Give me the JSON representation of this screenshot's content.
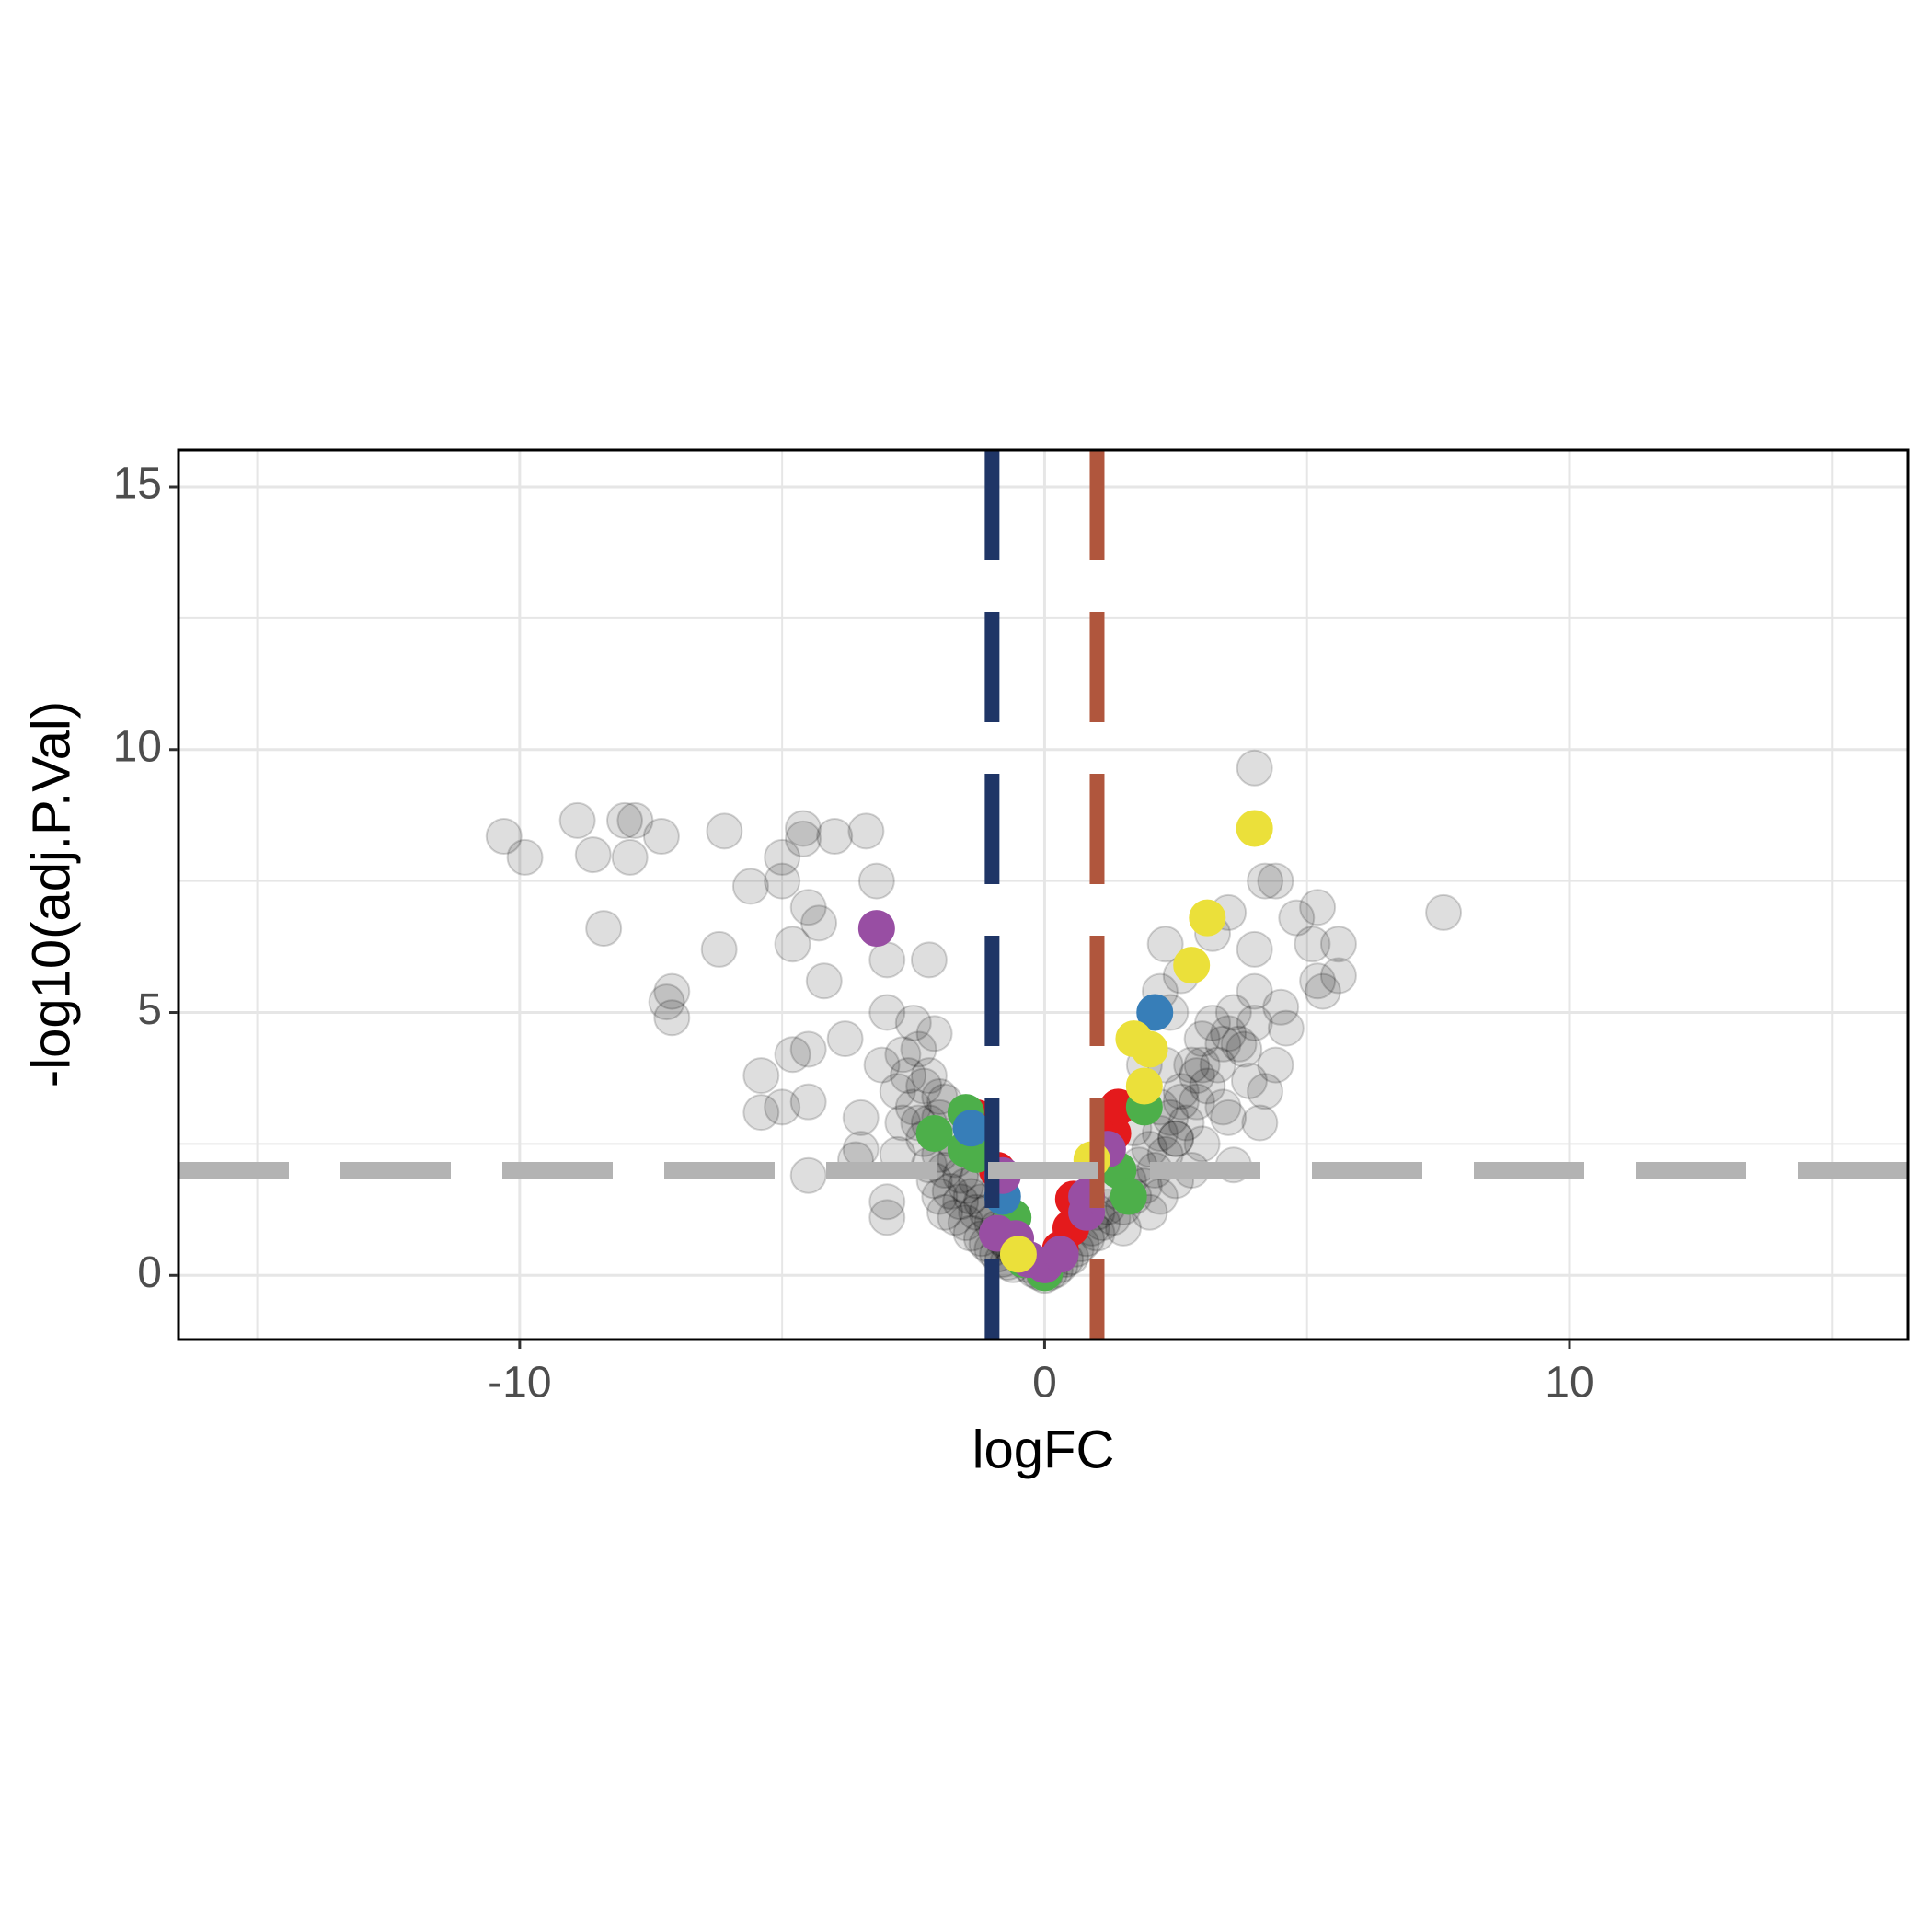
{
  "chart_data": {
    "type": "scatter",
    "x_label": "logFC",
    "y_label": "-log10(adj.P.Val)",
    "xlim": [
      -16.5,
      16.45
    ],
    "ylim": [
      -1.22,
      15.7
    ],
    "xticks": [
      -10,
      0,
      10
    ],
    "yticks": [
      0,
      5,
      10,
      15
    ],
    "xminor": [
      -15,
      -5,
      5,
      15
    ],
    "yminor": [
      2.5,
      7.5,
      12.5
    ],
    "grid": true,
    "grid_color": "#e6e6e6",
    "vlines": [
      {
        "value": -1,
        "color": "#1f3566"
      },
      {
        "value": 1,
        "color": "#b0563d"
      }
    ],
    "hlines": [
      {
        "value": 2,
        "color": "#b3b3b3"
      }
    ],
    "series": [
      {
        "color": "#000000",
        "alpha": 0.13,
        "x": [
          -10.3,
          -9.9,
          -8.9,
          -8.6,
          -8.0,
          -7.9,
          -7.8,
          -8.4,
          -7.3,
          -6.1,
          -6.2,
          -7.2,
          -7.1,
          -7.1,
          -5.6,
          -5.0,
          -5.0,
          -4.6,
          -4.6,
          -4.8,
          -4.5,
          -4.3,
          -4.0,
          -3.4,
          -3.2,
          -3.0,
          -2.2,
          -3.8,
          -4.2,
          -4.5,
          -4.8,
          -5.4,
          -5.4,
          -5.0,
          -4.5,
          -4.5,
          -3.0,
          -3.0,
          -3.5,
          -3.5,
          -3.6,
          -3.0,
          -2.7,
          -2.5,
          -2.2,
          -2.0,
          -2.8,
          -3.1,
          -2.4
        ],
        "y": [
          8.35,
          7.95,
          8.65,
          8.0,
          8.65,
          7.95,
          8.65,
          6.6,
          8.35,
          8.45,
          6.2,
          5.2,
          5.4,
          4.9,
          7.4,
          7.95,
          7.5,
          8.5,
          8.3,
          6.3,
          7.0,
          6.7,
          8.35,
          8.45,
          7.5,
          6.0,
          6.0,
          4.5,
          5.6,
          4.3,
          4.2,
          3.8,
          3.1,
          3.2,
          3.3,
          1.9,
          1.4,
          1.1,
          3.0,
          2.4,
          2.2,
          5.0,
          4.2,
          4.8,
          3.8,
          3.4,
          3.5,
          4.0,
          2.9
        ]
      },
      {
        "color": "#000000",
        "alpha": 0.13,
        "x": [
          4.0,
          4.2,
          4.4,
          3.5,
          3.2,
          2.3,
          2.2,
          2.6,
          4.0,
          4.8,
          5.2,
          5.1,
          5.6,
          5.2,
          5.3,
          5.6,
          7.6,
          4.5,
          4.0,
          4.6,
          3.4,
          3.7,
          3.0,
          4.2,
          4.1,
          2.9,
          2.6,
          2.2,
          3.6,
          2.5,
          1.9,
          4.4,
          2.4
        ],
        "y": [
          9.65,
          7.5,
          7.5,
          6.9,
          6.5,
          6.3,
          5.4,
          5.7,
          6.2,
          6.8,
          7.0,
          6.3,
          6.3,
          5.6,
          5.4,
          5.7,
          6.9,
          5.1,
          5.4,
          4.7,
          4.4,
          4.4,
          4.0,
          3.5,
          2.9,
          3.8,
          3.3,
          3.2,
          2.1,
          2.6,
          4.0,
          4.0,
          5.0
        ]
      },
      {
        "color": "#000000",
        "alpha": 0.13,
        "x": [
          -2.3,
          -2.2,
          -2.1,
          -2.0,
          -2.0,
          -1.9,
          -1.9,
          -1.8,
          -1.8,
          -1.7,
          -1.7,
          -1.6,
          -1.6,
          -1.5,
          -1.5,
          -1.4,
          -1.4,
          -1.3,
          -1.3,
          -1.2,
          -1.2,
          -1.1,
          -1.1,
          -1.0,
          -1.0,
          -0.9,
          -0.9,
          -0.8,
          -0.8,
          -0.7,
          -0.7,
          -0.6,
          -0.6,
          -0.5,
          -0.4,
          -0.3,
          -0.2,
          -0.1,
          0.0,
          -2.5,
          -2.6,
          -2.4,
          -2.3,
          -2.1,
          -2.7,
          -2.8,
          -2.0,
          -1.9,
          -2.2
        ],
        "y": [
          2.6,
          2.1,
          1.8,
          2.3,
          1.5,
          2.0,
          1.2,
          2.6,
          1.6,
          2.2,
          1.1,
          1.9,
          1.4,
          1.7,
          1.0,
          1.5,
          0.8,
          1.8,
          1.2,
          1.4,
          0.7,
          1.2,
          0.6,
          1.0,
          0.5,
          0.9,
          0.4,
          0.7,
          0.3,
          0.6,
          0.25,
          0.5,
          0.2,
          0.4,
          0.3,
          0.2,
          0.1,
          0.05,
          0.0,
          3.2,
          3.8,
          4.3,
          3.6,
          4.6,
          2.9,
          2.3,
          3.0,
          3.3,
          2.9
        ]
      },
      {
        "color": "#000000",
        "alpha": 0.13,
        "x": [
          0.1,
          0.2,
          0.3,
          0.4,
          0.5,
          0.6,
          0.7,
          0.8,
          0.9,
          1.0,
          1.0,
          1.1,
          1.2,
          1.3,
          1.4,
          1.5,
          1.6,
          1.7,
          1.8,
          1.9,
          2.0,
          2.1,
          2.2,
          2.3,
          2.4,
          2.5,
          2.6,
          2.7,
          2.8,
          2.9,
          3.0,
          3.1,
          3.2,
          3.3,
          3.4,
          3.5,
          3.6,
          3.8,
          3.9,
          4.0,
          2.0,
          1.5,
          2.5,
          3.0,
          3.5,
          2.2,
          2.8,
          1.7,
          2.3
        ],
        "y": [
          0.05,
          0.1,
          0.2,
          0.3,
          0.35,
          0.5,
          0.6,
          0.7,
          0.9,
          0.8,
          1.2,
          1.0,
          1.3,
          1.1,
          1.6,
          1.3,
          1.8,
          1.5,
          2.1,
          1.7,
          2.4,
          2.0,
          2.7,
          2.3,
          3.0,
          2.6,
          3.5,
          2.9,
          4.0,
          3.3,
          4.5,
          3.6,
          4.8,
          4.0,
          3.2,
          4.6,
          5.0,
          4.3,
          3.7,
          4.8,
          1.2,
          0.9,
          1.8,
          2.5,
          3.0,
          1.5,
          2.0,
          2.8,
          4.0
        ]
      },
      {
        "color": "#e41a1c",
        "alpha": 1,
        "x": [
          0.55,
          0.5,
          1.3,
          1.4,
          -1.3,
          -0.9,
          0.3
        ],
        "y": [
          1.45,
          0.9,
          2.7,
          3.2,
          3.0,
          2.0,
          0.5
        ]
      },
      {
        "color": "#4daf4a",
        "alpha": 1,
        "x": [
          -2.1,
          -1.5,
          -1.5,
          -1.3,
          1.9,
          1.4,
          1.6,
          -0.6,
          -0.4,
          0.0
        ],
        "y": [
          2.7,
          3.1,
          2.4,
          2.3,
          3.2,
          2.0,
          1.5,
          1.1,
          0.3,
          0.05
        ]
      },
      {
        "color": "#377eb8",
        "alpha": 1,
        "x": [
          2.1,
          -0.8,
          -1.4
        ],
        "y": [
          5.0,
          1.5,
          2.8
        ]
      },
      {
        "color": "#984ea3",
        "alpha": 1,
        "x": [
          -3.2,
          -0.9,
          -0.55,
          -0.3,
          0.0,
          0.3,
          0.8,
          0.8,
          1.2,
          -0.8
        ],
        "y": [
          6.6,
          0.8,
          0.7,
          0.3,
          0.2,
          0.4,
          1.2,
          1.5,
          2.4,
          1.9
        ]
      },
      {
        "color": "#ebe03a",
        "alpha": 1,
        "x": [
          4.0,
          3.1,
          2.8,
          1.7,
          2.0,
          1.9,
          0.9,
          -0.5
        ],
        "y": [
          8.5,
          6.8,
          5.9,
          4.5,
          4.3,
          3.6,
          2.2,
          0.4
        ]
      }
    ]
  }
}
